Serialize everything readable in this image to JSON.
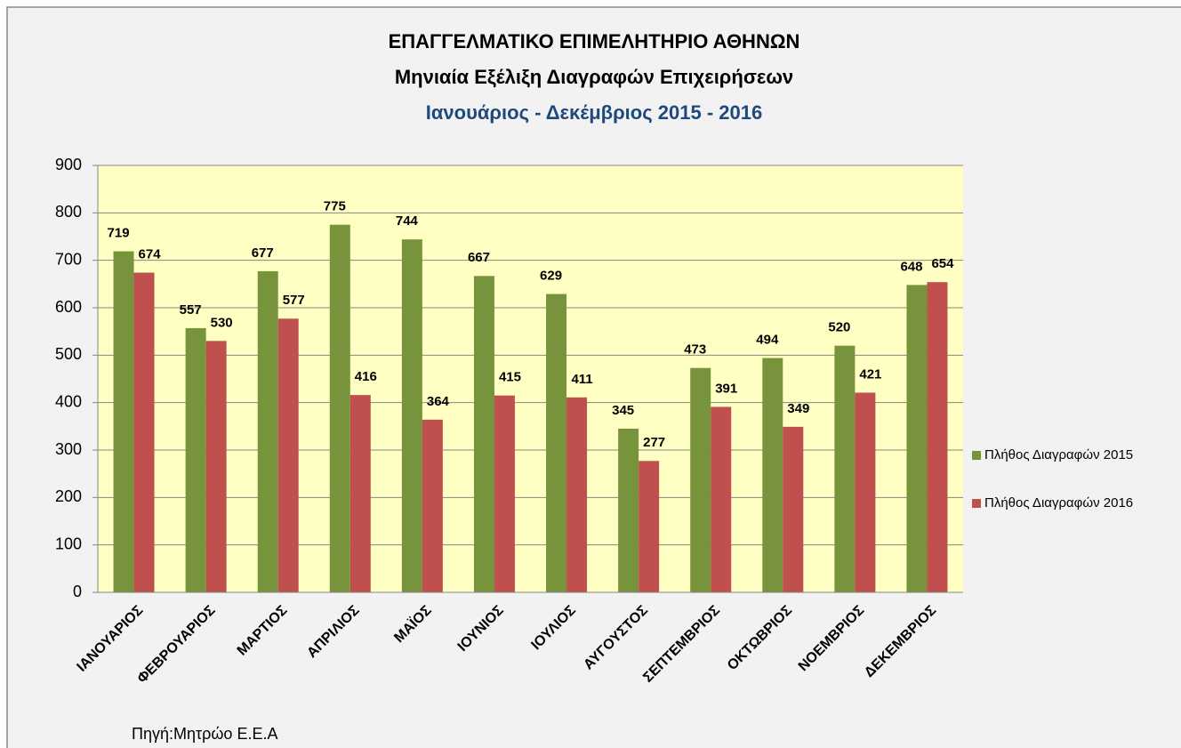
{
  "chart_data": {
    "type": "bar",
    "title": [
      "ΕΠΑΓΓΕΛΜΑΤΙΚΟ ΕΠΙΜΕΛΗΤΗΡΙΟ ΑΘΗΝΩΝ",
      "Μηνιαία Εξέλιξη Διαγραφών Επιχειρήσεων",
      "Ιανουάριος - Δεκέμβριος  2015 - 2016"
    ],
    "categories": [
      "ΙΑΝΟΥΑΡΙΟΣ",
      "ΦΕΒΡΟΥΑΡΙΟΣ",
      "ΜΑΡΤΙΟΣ",
      "ΑΠΡΙΛΙΟΣ",
      "ΜΑΪΟΣ",
      "ΙΟΥΝΙΟΣ",
      "ΙΟΥΛΙΟΣ",
      "ΑΥΓΟΥΣΤΟΣ",
      "ΣΕΠΤΕΜΒΡΙΟΣ",
      "ΟΚΤΩΒΡΙΟΣ",
      "ΝΟΕΜΒΡΙΟΣ",
      "ΔΕΚΕΜΒΡΙΟΣ"
    ],
    "series": [
      {
        "name": "Πλήθος Διαγραφών 2015",
        "color": "#77933c",
        "values": [
          719,
          557,
          677,
          775,
          744,
          667,
          629,
          345,
          473,
          494,
          520,
          648
        ]
      },
      {
        "name": "Πλήθος Διαγραφών 2016",
        "color": "#c0504d",
        "values": [
          674,
          530,
          577,
          416,
          364,
          415,
          411,
          277,
          391,
          349,
          421,
          654
        ]
      }
    ],
    "ylim": [
      0,
      900
    ],
    "yticks": [
      0,
      100,
      200,
      300,
      400,
      500,
      600,
      700,
      800,
      900
    ],
    "grid": true,
    "legend": "right",
    "plot_background": "#ffffc4",
    "source": "Πηγή:Μητρώο Ε.Ε.Α"
  }
}
